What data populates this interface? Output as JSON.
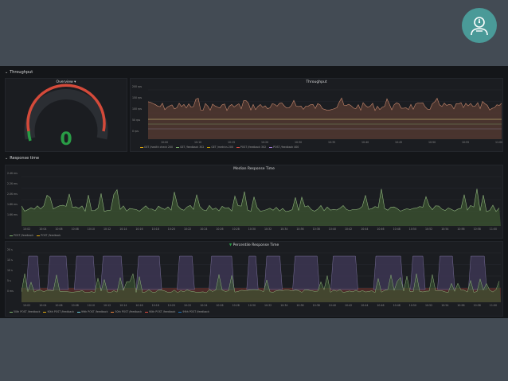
{
  "colors": {
    "page": "#434b54",
    "dashboard": "#141619",
    "panel": "#1b1d21",
    "logo": "#4a9a98",
    "gauge_red": "#d44a3a",
    "gauge_green": "#299c46",
    "green_fill": "#4a6b3c",
    "brown_fill": "#6b4a3d",
    "purple_fill": "#3b3550"
  },
  "logo": {
    "icon": "person-gauge-icon"
  },
  "rows": {
    "throughput": "Throughput",
    "response_time": "Response time"
  },
  "gauge": {
    "title": "Overview",
    "value": "0",
    "value_fraction": 0.0
  },
  "throughput_panel": {
    "title": "Throughput",
    "y_ticks": [
      "200 rps",
      "150 rps",
      "100 rps",
      "50 rps",
      "0 rps"
    ],
    "x_ticks": [
      "10:00",
      "10:10",
      "10:15",
      "10:20",
      "10:30",
      "10:35",
      "10:40",
      "10:45",
      "10:50",
      "10:55",
      "11:00"
    ],
    "legend": [
      "GET /health check 200",
      "GET /feedback 302",
      "GET /metrics 200",
      "POST /feedback 302",
      "POST /feedback 400"
    ],
    "legend_colors": [
      "#e5ac0e",
      "#7eb26d",
      "#cca300",
      "#e24d42",
      "#a57cdc"
    ]
  },
  "median_panel": {
    "title": "Median Response Time",
    "y_ticks": [
      "2.4K ms",
      "2.2K ms",
      "2.0K ms",
      "1.8K ms",
      "1.6K ms"
    ],
    "x_ticks": [
      "10:02",
      "10:04",
      "10:06",
      "10:08",
      "10:10",
      "10:12",
      "10:14",
      "10:16",
      "10:18",
      "10:20",
      "10:22",
      "10:24",
      "10:26",
      "10:28",
      "10:30",
      "10:32",
      "10:34",
      "10:36",
      "10:38",
      "10:40",
      "10:42",
      "10:44",
      "10:46",
      "10:48",
      "10:50",
      "10:52",
      "10:54",
      "10:56",
      "10:58",
      "11:00"
    ],
    "legend": [
      "POST /feedback",
      "POST /feedback"
    ],
    "legend_colors": [
      "#7eb26d",
      "#e5ac0e"
    ]
  },
  "percentile_panel": {
    "title": "Percentile Response Time",
    "y_ticks": [
      "20 s",
      "15 s",
      "10 s",
      "5 s",
      "0 ms"
    ],
    "x_ticks": [
      "10:02",
      "10:04",
      "10:06",
      "10:08",
      "10:10",
      "10:12",
      "10:14",
      "10:16",
      "10:18",
      "10:20",
      "10:22",
      "10:24",
      "10:26",
      "10:28",
      "10:30",
      "10:32",
      "10:34",
      "10:36",
      "10:38",
      "10:40",
      "10:42",
      "10:44",
      "10:46",
      "10:48",
      "10:50",
      "10:52",
      "10:54",
      "10:56",
      "10:58",
      "11:00"
    ],
    "legend": [
      "50th POST /feedback",
      "90th POST /feedback",
      "99th POST /feedback",
      "50th POST /feedback",
      "90th POST /feedback",
      "99th POST /feedback"
    ],
    "legend_colors": [
      "#7eb26d",
      "#e5ac0e",
      "#6ed0e0",
      "#ef843c",
      "#e24d42",
      "#1f78c1"
    ]
  }
}
